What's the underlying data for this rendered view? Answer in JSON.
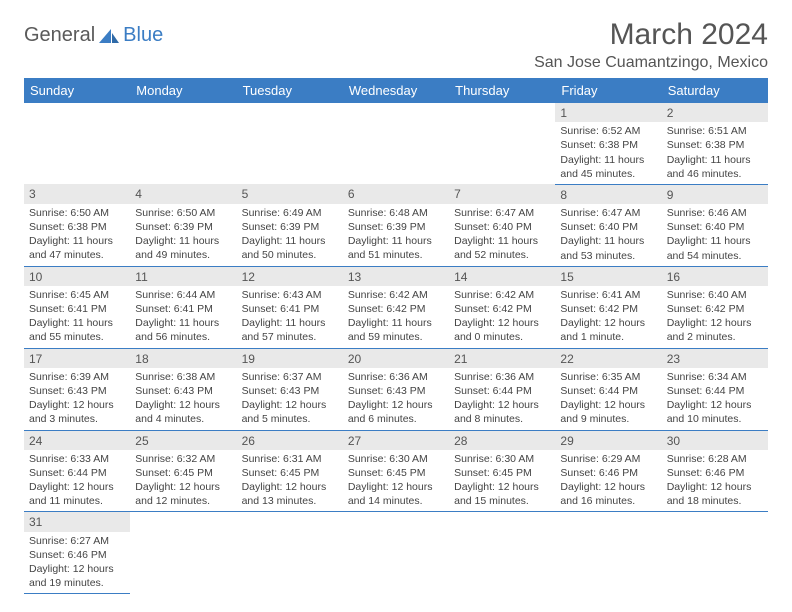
{
  "brand": {
    "part1": "General",
    "part2": "Blue"
  },
  "title": "March 2024",
  "location": "San Jose Cuamantzingo, Mexico",
  "colors": {
    "header_blue": "#3b7dc4",
    "daynum_bg": "#e9e9e9",
    "text": "#444444",
    "title_text": "#555555"
  },
  "weekdays": [
    "Sunday",
    "Monday",
    "Tuesday",
    "Wednesday",
    "Thursday",
    "Friday",
    "Saturday"
  ],
  "grid": [
    [
      null,
      null,
      null,
      null,
      null,
      {
        "n": "1",
        "sr": "6:52 AM",
        "ss": "6:38 PM",
        "dl": "11 hours and 45 minutes."
      },
      {
        "n": "2",
        "sr": "6:51 AM",
        "ss": "6:38 PM",
        "dl": "11 hours and 46 minutes."
      }
    ],
    [
      {
        "n": "3",
        "sr": "6:50 AM",
        "ss": "6:38 PM",
        "dl": "11 hours and 47 minutes."
      },
      {
        "n": "4",
        "sr": "6:50 AM",
        "ss": "6:39 PM",
        "dl": "11 hours and 49 minutes."
      },
      {
        "n": "5",
        "sr": "6:49 AM",
        "ss": "6:39 PM",
        "dl": "11 hours and 50 minutes."
      },
      {
        "n": "6",
        "sr": "6:48 AM",
        "ss": "6:39 PM",
        "dl": "11 hours and 51 minutes."
      },
      {
        "n": "7",
        "sr": "6:47 AM",
        "ss": "6:40 PM",
        "dl": "11 hours and 52 minutes."
      },
      {
        "n": "8",
        "sr": "6:47 AM",
        "ss": "6:40 PM",
        "dl": "11 hours and 53 minutes."
      },
      {
        "n": "9",
        "sr": "6:46 AM",
        "ss": "6:40 PM",
        "dl": "11 hours and 54 minutes."
      }
    ],
    [
      {
        "n": "10",
        "sr": "6:45 AM",
        "ss": "6:41 PM",
        "dl": "11 hours and 55 minutes."
      },
      {
        "n": "11",
        "sr": "6:44 AM",
        "ss": "6:41 PM",
        "dl": "11 hours and 56 minutes."
      },
      {
        "n": "12",
        "sr": "6:43 AM",
        "ss": "6:41 PM",
        "dl": "11 hours and 57 minutes."
      },
      {
        "n": "13",
        "sr": "6:42 AM",
        "ss": "6:42 PM",
        "dl": "11 hours and 59 minutes."
      },
      {
        "n": "14",
        "sr": "6:42 AM",
        "ss": "6:42 PM",
        "dl": "12 hours and 0 minutes."
      },
      {
        "n": "15",
        "sr": "6:41 AM",
        "ss": "6:42 PM",
        "dl": "12 hours and 1 minute."
      },
      {
        "n": "16",
        "sr": "6:40 AM",
        "ss": "6:42 PM",
        "dl": "12 hours and 2 minutes."
      }
    ],
    [
      {
        "n": "17",
        "sr": "6:39 AM",
        "ss": "6:43 PM",
        "dl": "12 hours and 3 minutes."
      },
      {
        "n": "18",
        "sr": "6:38 AM",
        "ss": "6:43 PM",
        "dl": "12 hours and 4 minutes."
      },
      {
        "n": "19",
        "sr": "6:37 AM",
        "ss": "6:43 PM",
        "dl": "12 hours and 5 minutes."
      },
      {
        "n": "20",
        "sr": "6:36 AM",
        "ss": "6:43 PM",
        "dl": "12 hours and 6 minutes."
      },
      {
        "n": "21",
        "sr": "6:36 AM",
        "ss": "6:44 PM",
        "dl": "12 hours and 8 minutes."
      },
      {
        "n": "22",
        "sr": "6:35 AM",
        "ss": "6:44 PM",
        "dl": "12 hours and 9 minutes."
      },
      {
        "n": "23",
        "sr": "6:34 AM",
        "ss": "6:44 PM",
        "dl": "12 hours and 10 minutes."
      }
    ],
    [
      {
        "n": "24",
        "sr": "6:33 AM",
        "ss": "6:44 PM",
        "dl": "12 hours and 11 minutes."
      },
      {
        "n": "25",
        "sr": "6:32 AM",
        "ss": "6:45 PM",
        "dl": "12 hours and 12 minutes."
      },
      {
        "n": "26",
        "sr": "6:31 AM",
        "ss": "6:45 PM",
        "dl": "12 hours and 13 minutes."
      },
      {
        "n": "27",
        "sr": "6:30 AM",
        "ss": "6:45 PM",
        "dl": "12 hours and 14 minutes."
      },
      {
        "n": "28",
        "sr": "6:30 AM",
        "ss": "6:45 PM",
        "dl": "12 hours and 15 minutes."
      },
      {
        "n": "29",
        "sr": "6:29 AM",
        "ss": "6:46 PM",
        "dl": "12 hours and 16 minutes."
      },
      {
        "n": "30",
        "sr": "6:28 AM",
        "ss": "6:46 PM",
        "dl": "12 hours and 18 minutes."
      }
    ],
    [
      {
        "n": "31",
        "sr": "6:27 AM",
        "ss": "6:46 PM",
        "dl": "12 hours and 19 minutes."
      },
      null,
      null,
      null,
      null,
      null,
      null
    ]
  ],
  "labels": {
    "sunrise": "Sunrise:",
    "sunset": "Sunset:",
    "daylight": "Daylight:"
  }
}
